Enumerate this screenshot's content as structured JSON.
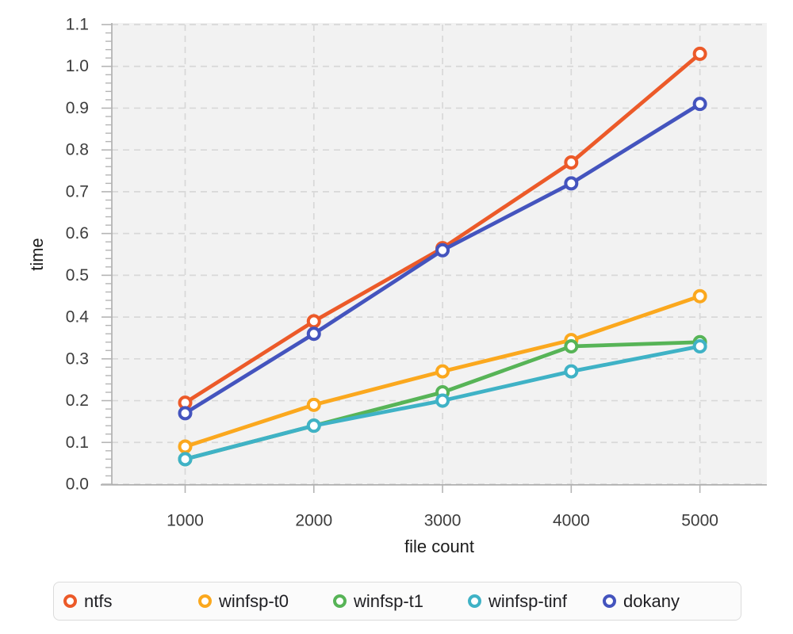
{
  "chart_data": {
    "type": "line",
    "title": "",
    "xlabel": "file count",
    "ylabel": "time",
    "x": [
      1000,
      2000,
      3000,
      4000,
      5000
    ],
    "x_ticks": [
      1000,
      2000,
      3000,
      4000,
      5000
    ],
    "y_tick_step": 0.1,
    "y_minor_step": 0.02,
    "xlim": [
      430,
      5520
    ],
    "ylim": [
      0,
      1.1
    ],
    "grid": "dashed",
    "legend_position": "bottom",
    "series": [
      {
        "name": "ntfs",
        "color": "#EC5A29",
        "values": [
          0.195,
          0.39,
          0.565,
          0.77,
          1.03
        ]
      },
      {
        "name": "winfsp-t0",
        "color": "#FBA81E",
        "values": [
          0.09,
          0.19,
          0.27,
          0.345,
          0.45
        ]
      },
      {
        "name": "winfsp-t1",
        "color": "#57B457",
        "values": [
          0.06,
          0.14,
          0.22,
          0.33,
          0.34
        ]
      },
      {
        "name": "winfsp-tinf",
        "color": "#3FB2C6",
        "values": [
          0.06,
          0.14,
          0.2,
          0.27,
          0.33
        ]
      },
      {
        "name": "dokany",
        "color": "#4454BE",
        "values": [
          0.17,
          0.36,
          0.56,
          0.72,
          0.91
        ]
      }
    ]
  },
  "legend": {
    "items": [
      {
        "label": "ntfs",
        "color": "#EC5A29"
      },
      {
        "label": "winfsp-t0",
        "color": "#FBA81E"
      },
      {
        "label": "winfsp-t1",
        "color": "#57B457"
      },
      {
        "label": "winfsp-tinf",
        "color": "#3FB2C6"
      },
      {
        "label": "dokany",
        "color": "#4454BE"
      }
    ]
  },
  "colors": {
    "plot_bg": "#F2F2F2",
    "grid": "#D8D8D8",
    "axis_line": "#ABABAB",
    "tick": "#B5B5B5",
    "tick_label": "#3D3D3D",
    "axis_title": "#1C1C1C",
    "marker_fill": "#FFFFFF"
  }
}
